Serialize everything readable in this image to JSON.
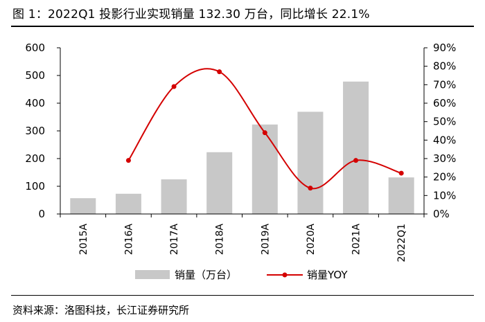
{
  "figure": {
    "title": "图 1：2022Q1 投影行业实现销量 132.30 万台，同比增长 22.1%",
    "source": "资料来源：洛图科技，长江证券研究所"
  },
  "chart_data": {
    "type": "bar",
    "categories": [
      "2015A",
      "2016A",
      "2017A",
      "2018A",
      "2019A",
      "2020A",
      "2021A",
      "2022Q1"
    ],
    "series": [
      {
        "name": "销量（万台）",
        "type": "bar",
        "axis": "left",
        "values": [
          57,
          73,
          125,
          223,
          323,
          369,
          478,
          132
        ]
      },
      {
        "name": "销量YOY",
        "type": "line",
        "axis": "right",
        "smooth": true,
        "values": [
          null,
          0.29,
          0.69,
          0.77,
          0.44,
          0.14,
          0.29,
          0.221
        ]
      }
    ],
    "y_left": {
      "ylim": [
        0,
        600
      ],
      "ticks": [
        "0",
        "100",
        "200",
        "300",
        "400",
        "500",
        "600"
      ]
    },
    "y_right": {
      "ylim": [
        0,
        0.9
      ],
      "ticks": [
        "0%",
        "10%",
        "20%",
        "30%",
        "40%",
        "50%",
        "60%",
        "70%",
        "80%",
        "90%"
      ]
    },
    "grid": false,
    "legend": "bottom-center",
    "colors": {
      "bar": "#c8c8c8",
      "line": "#d40000"
    }
  }
}
